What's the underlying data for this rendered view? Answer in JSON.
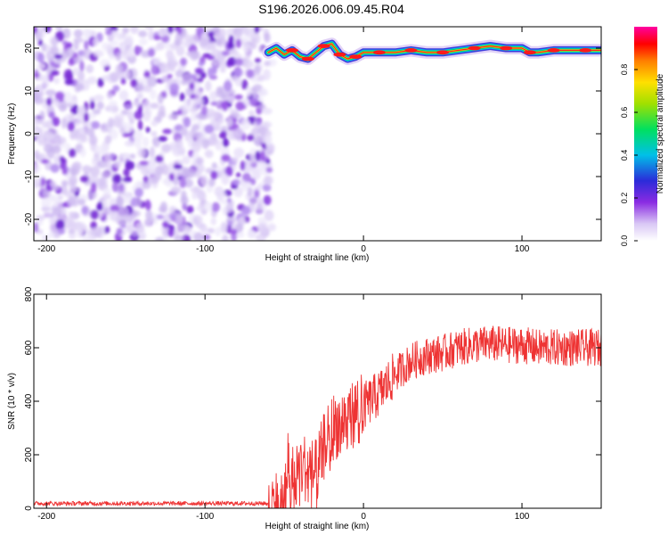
{
  "title": "S196.2026.006.09.45.R04",
  "chart_data": [
    {
      "type": "heatmap",
      "name": "spectrogram",
      "xlabel": "Height of straight line (km)",
      "ylabel": "Frequency (Hz)",
      "xlim": [
        -208,
        150
      ],
      "ylim": [
        -25,
        25
      ],
      "xticks": [
        -200,
        -100,
        0,
        100
      ],
      "yticks": [
        -20,
        -10,
        0,
        10,
        20
      ],
      "colorbar": {
        "label": "Normalized spectral amplitude",
        "range": [
          0,
          1
        ],
        "ticks": [
          0.0,
          0.2,
          0.4,
          0.6,
          0.8
        ]
      },
      "noise_region_x": [
        -208,
        -60
      ],
      "signal_trace": {
        "x": [
          -60,
          -55,
          -50,
          -45,
          -40,
          -35,
          -30,
          -25,
          -20,
          -15,
          -10,
          -5,
          0,
          10,
          20,
          30,
          40,
          50,
          60,
          70,
          80,
          90,
          100,
          105,
          110,
          120,
          130,
          140,
          150
        ],
        "freq": [
          19,
          20,
          18.5,
          19.5,
          18,
          17.5,
          19,
          20.5,
          21,
          18.5,
          17.5,
          18,
          19,
          19,
          19,
          19.5,
          19,
          19,
          19.5,
          20,
          20.5,
          20,
          20,
          19,
          19,
          19.5,
          19.5,
          19.5,
          19.5
        ]
      }
    },
    {
      "type": "line",
      "name": "snr",
      "xlabel": "Height of straight line (km)",
      "ylabel": "SNR (10 * v/v)",
      "xlim": [
        -208,
        150
      ],
      "ylim": [
        0,
        800
      ],
      "xticks": [
        -200,
        -100,
        0,
        100
      ],
      "yticks": [
        0,
        200,
        400,
        600,
        800
      ],
      "color": "#ee3333",
      "trend": {
        "x": [
          -208,
          -60,
          -50,
          -48,
          -45,
          -40,
          -35,
          -30,
          -25,
          -20,
          -10,
          0,
          10,
          20,
          30,
          40,
          50,
          60,
          70,
          80,
          90,
          100,
          110,
          120,
          130,
          140,
          150
        ],
        "y": [
          18,
          18,
          22,
          180,
          110,
          160,
          150,
          130,
          230,
          300,
          340,
          380,
          430,
          500,
          550,
          570,
          580,
          600,
          610,
          615,
          610,
          610,
          600,
          600,
          600,
          600,
          600
        ]
      }
    }
  ]
}
